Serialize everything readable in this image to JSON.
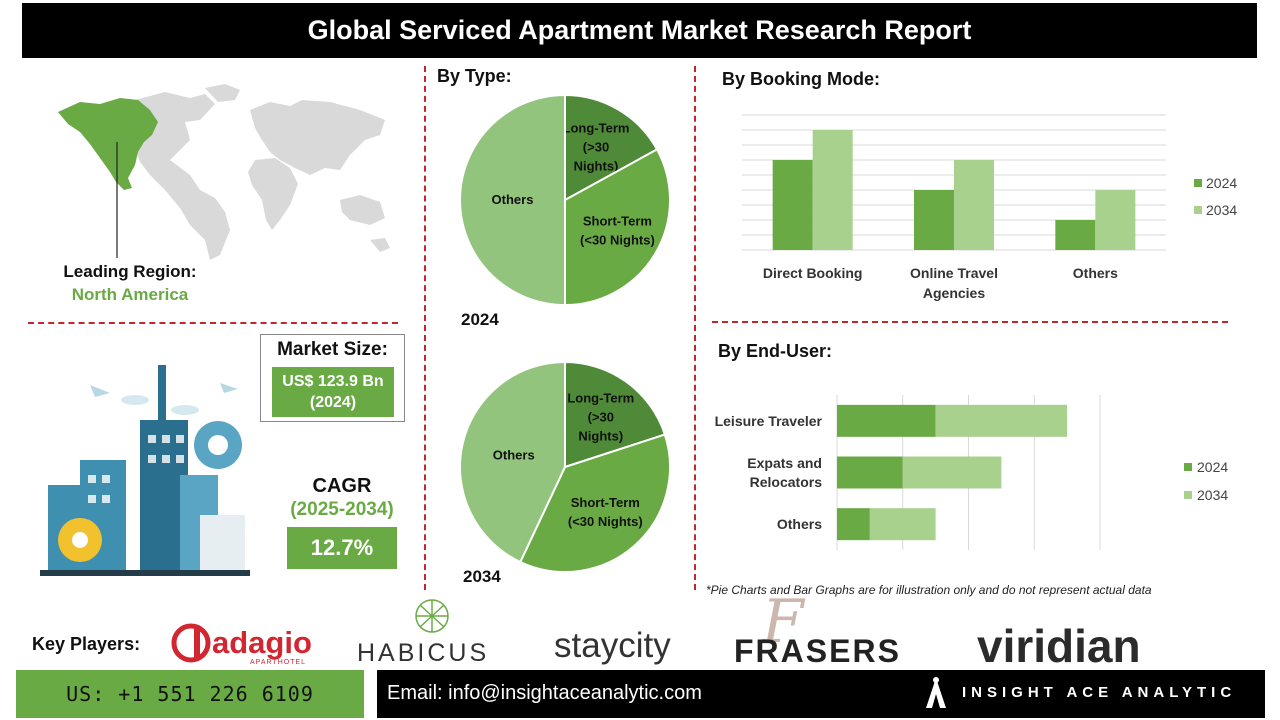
{
  "title": "Global Serviced Apartment Market Research Report",
  "leading_region": {
    "label": "Leading Region:",
    "value": "North America"
  },
  "market_size": {
    "label": "Market Size:",
    "value": "US$ 123.9 Bn",
    "year": "(2024)"
  },
  "cagr": {
    "label": "CAGR",
    "period": "(2025-2034)",
    "value": "12.7%"
  },
  "by_type": {
    "title": "By Type:"
  },
  "by_booking": {
    "title": "By Booking Mode:"
  },
  "by_end_user": {
    "title": "By End-User:"
  },
  "footnote": "*Pie Charts and Bar Graphs are for illustration only and do not represent actual data",
  "key_players": {
    "label": "Key Players:",
    "logos": [
      "adagio",
      "APARTHOTEL",
      "HABICUS",
      "staycity",
      "FRASERS",
      "viridian"
    ]
  },
  "footer": {
    "phone": "US: +1 551 226 6109",
    "email": "Email: info@insightaceanalytic.com",
    "brand": "INSIGHT ACE ANALYTIC"
  },
  "colors": {
    "accent": "#6aaa45",
    "dark_green": "#4e8a37",
    "light_green": "#a9d18e",
    "red_dash": "#c0282d",
    "map_grey": "#d9d9d9"
  },
  "chart_data": [
    {
      "type": "pie",
      "year": "2024",
      "slices": [
        {
          "label": [
            "Long-Term",
            "(>30",
            "Nights)"
          ],
          "value": 17,
          "color": "#4e8a37"
        },
        {
          "label": [
            "Short-Term",
            "(<30 Nights)"
          ],
          "value": 33,
          "color": "#6aaa45"
        },
        {
          "label": [
            "Others"
          ],
          "value": 50,
          "color": "#93c47d"
        }
      ]
    },
    {
      "type": "pie",
      "year": "2034",
      "slices": [
        {
          "label": [
            "Long-Term",
            "(>30",
            "Nights)"
          ],
          "value": 20,
          "color": "#4e8a37"
        },
        {
          "label": [
            "Short-Term",
            "(<30 Nights)"
          ],
          "value": 37,
          "color": "#6aaa45"
        },
        {
          "label": [
            "Others"
          ],
          "value": 43,
          "color": "#93c47d"
        }
      ]
    },
    {
      "type": "bar",
      "orientation": "vertical",
      "categories": [
        [
          "Direct Booking"
        ],
        [
          "Online Travel",
          "Agencies"
        ],
        [
          "Others"
        ]
      ],
      "series": [
        {
          "name": "2024",
          "values": [
            3,
            2,
            1
          ],
          "color": "#6aaa45"
        },
        {
          "name": "2034",
          "values": [
            4,
            3,
            2
          ],
          "color": "#a9d18e"
        }
      ],
      "ylim": [
        0,
        4.5
      ],
      "grid": true,
      "legend": "right"
    },
    {
      "type": "bar",
      "orientation": "horizontal",
      "stacked": true,
      "categories": [
        [
          "Leisure Traveler"
        ],
        [
          "Expats and",
          "Relocators"
        ],
        [
          "Others"
        ]
      ],
      "series": [
        {
          "name": "2024",
          "values": [
            3,
            2,
            1
          ],
          "color": "#6aaa45"
        },
        {
          "name": "2034",
          "values": [
            4,
            3,
            2
          ],
          "color": "#a9d18e"
        }
      ],
      "xlim": [
        0,
        8
      ],
      "grid": true,
      "legend": "right"
    }
  ]
}
